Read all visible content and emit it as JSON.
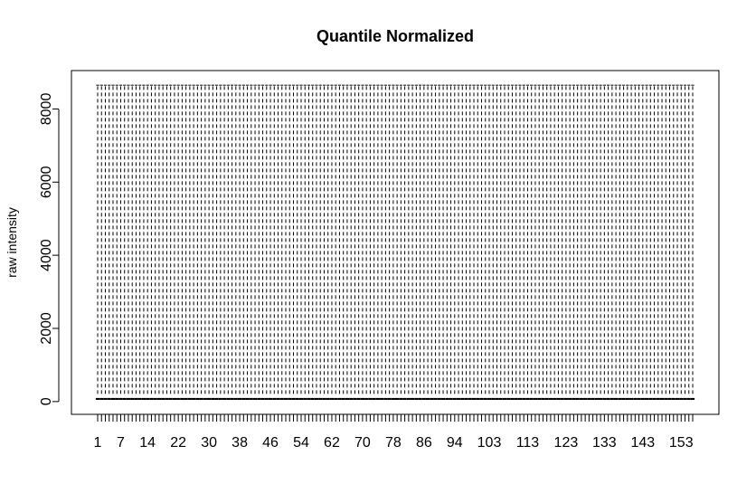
{
  "chart_data": {
    "type": "box",
    "title": "Quantile Normalized",
    "xlabel": "",
    "ylabel": "raw intensity",
    "n_boxes": 156,
    "x_tick_labels": [
      "1",
      "7",
      "14",
      "22",
      "30",
      "38",
      "46",
      "54",
      "62",
      "70",
      "78",
      "86",
      "94",
      "103",
      "113",
      "123",
      "133",
      "143",
      "153"
    ],
    "y_ticks": [
      0,
      2000,
      4000,
      6000,
      8000
    ],
    "ylim": [
      -350,
      9050
    ],
    "box_stats": {
      "lower_whisker": 35,
      "q1": 60,
      "median": 70,
      "q3": 85,
      "upper_whisker": 110,
      "max": 8650
    },
    "grid": false,
    "colors": {
      "ink": "#000000",
      "background": "#ffffff"
    }
  }
}
